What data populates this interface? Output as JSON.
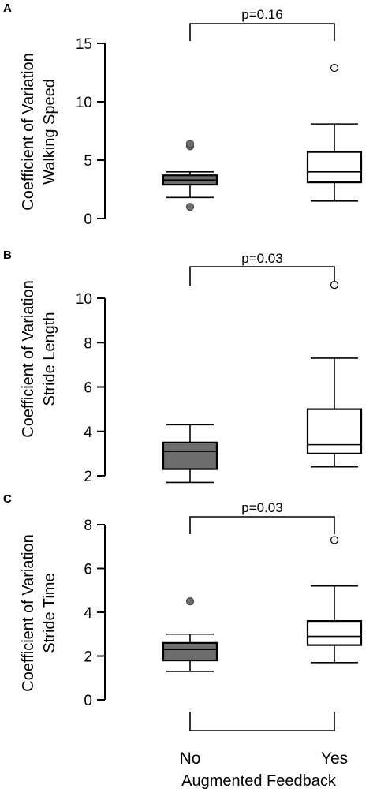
{
  "chart_data": [
    {
      "type": "box",
      "panel": "A",
      "ylabel_lines": [
        "Coefficient of Variation",
        "Walking Speed"
      ],
      "ylim": [
        0,
        15
      ],
      "yticks": [
        0,
        5,
        10,
        15
      ],
      "categories": [
        "No",
        "Yes"
      ],
      "boxes": [
        {
          "whisker_low": 1.8,
          "q1": 2.9,
          "median": 3.3,
          "q3": 3.7,
          "whisker_high": 4.0,
          "outliers": [
            6.2,
            6.4,
            1.0
          ],
          "fill": "#6d6d6d"
        },
        {
          "whisker_low": 1.5,
          "q1": 3.1,
          "median": 4.0,
          "q3": 5.7,
          "whisker_high": 8.1,
          "outliers": [
            12.9
          ],
          "fill": "#ffffff"
        }
      ],
      "significance": "p=0.16"
    },
    {
      "type": "box",
      "panel": "B",
      "ylabel_lines": [
        "Coefficient of Variation",
        "Stride Length"
      ],
      "ylim": [
        1.6,
        10.6
      ],
      "yticks": [
        2,
        4,
        6,
        8,
        10
      ],
      "categories": [
        "No",
        "Yes"
      ],
      "boxes": [
        {
          "whisker_low": 1.7,
          "q1": 2.3,
          "median": 3.1,
          "q3": 3.5,
          "whisker_high": 4.3,
          "outliers": [],
          "fill": "#6d6d6d"
        },
        {
          "whisker_low": 2.4,
          "q1": 3.0,
          "median": 3.4,
          "q3": 5.0,
          "whisker_high": 7.3,
          "outliers": [
            10.6
          ],
          "fill": "#ffffff"
        }
      ],
      "significance": "p=0.03"
    },
    {
      "type": "box",
      "panel": "C",
      "ylabel_lines": [
        "Coefficient of Variation",
        "Stride Time"
      ],
      "ylim": [
        0,
        8
      ],
      "yticks": [
        0,
        2,
        4,
        6,
        8
      ],
      "categories": [
        "No",
        "Yes"
      ],
      "boxes": [
        {
          "whisker_low": 1.3,
          "q1": 1.8,
          "median": 2.3,
          "q3": 2.6,
          "whisker_high": 3.0,
          "outliers": [
            4.5
          ],
          "fill": "#6d6d6d"
        },
        {
          "whisker_low": 1.7,
          "q1": 2.5,
          "median": 2.9,
          "q3": 3.6,
          "whisker_high": 5.2,
          "outliers": [
            7.3
          ],
          "fill": "#ffffff"
        }
      ],
      "significance": "p=0.03"
    }
  ],
  "xlabel": "Augmented Feedback"
}
